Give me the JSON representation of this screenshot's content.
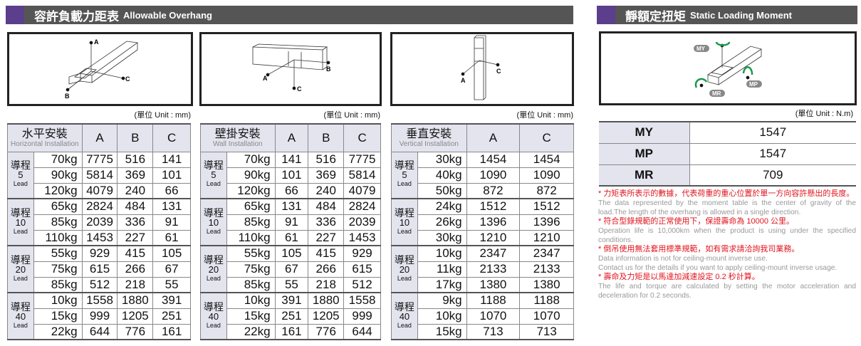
{
  "left_header": {
    "zh": "容許負載力距表",
    "en": "Allowable Overhang"
  },
  "right_header": {
    "zh": "靜額定扭矩",
    "en": "Static Loading Moment"
  },
  "unit_mm": "(單位 Unit : mm)",
  "unit_nm": "(單位 Unit : N.m)",
  "diagram_labels": {
    "a": "A",
    "b": "B",
    "c": "C",
    "my": "MY",
    "mp": "MP",
    "mr": "MR"
  },
  "colors": {
    "header_bar": "#555555",
    "accent": "#5b3f8c",
    "table_header_bg": "#e4e4ef",
    "note_red": "#e0141e",
    "moment_arrow": "#1a9a4a"
  },
  "lead_label_zh": "導程",
  "lead_label_en": "Lead",
  "tables": [
    {
      "title_zh": "水平安裝",
      "title_en": "Horizontal Installation",
      "cols": [
        "A",
        "B",
        "C"
      ],
      "groups": [
        {
          "lead": "5",
          "rows": [
            [
              "70kg",
              "7775",
              "516",
              "141"
            ],
            [
              "90kg",
              "5814",
              "369",
              "101"
            ],
            [
              "120kg",
              "4079",
              "240",
              "66"
            ]
          ]
        },
        {
          "lead": "10",
          "rows": [
            [
              "65kg",
              "2824",
              "484",
              "131"
            ],
            [
              "85kg",
              "2039",
              "336",
              "91"
            ],
            [
              "110kg",
              "1453",
              "227",
              "61"
            ]
          ]
        },
        {
          "lead": "20",
          "rows": [
            [
              "55kg",
              "929",
              "415",
              "105"
            ],
            [
              "75kg",
              "615",
              "266",
              "67"
            ],
            [
              "85kg",
              "512",
              "218",
              "55"
            ]
          ]
        },
        {
          "lead": "40",
          "rows": [
            [
              "10kg",
              "1558",
              "1880",
              "391"
            ],
            [
              "15kg",
              "999",
              "1205",
              "251"
            ],
            [
              "22kg",
              "644",
              "776",
              "161"
            ]
          ]
        }
      ]
    },
    {
      "title_zh": "壁掛安裝",
      "title_en": "Wall Installation",
      "cols": [
        "A",
        "B",
        "C"
      ],
      "groups": [
        {
          "lead": "5",
          "rows": [
            [
              "70kg",
              "141",
              "516",
              "7775"
            ],
            [
              "90kg",
              "101",
              "369",
              "5814"
            ],
            [
              "120kg",
              "66",
              "240",
              "4079"
            ]
          ]
        },
        {
          "lead": "10",
          "rows": [
            [
              "65kg",
              "131",
              "484",
              "2824"
            ],
            [
              "85kg",
              "91",
              "336",
              "2039"
            ],
            [
              "110kg",
              "61",
              "227",
              "1453"
            ]
          ]
        },
        {
          "lead": "20",
          "rows": [
            [
              "55kg",
              "105",
              "415",
              "929"
            ],
            [
              "75kg",
              "67",
              "266",
              "615"
            ],
            [
              "85kg",
              "55",
              "218",
              "512"
            ]
          ]
        },
        {
          "lead": "40",
          "rows": [
            [
              "10kg",
              "391",
              "1880",
              "1558"
            ],
            [
              "15kg",
              "251",
              "1205",
              "999"
            ],
            [
              "22kg",
              "161",
              "776",
              "644"
            ]
          ]
        }
      ]
    },
    {
      "title_zh": "垂直安裝",
      "title_en": "Vertical Installation",
      "cols": [
        "A",
        "C"
      ],
      "groups": [
        {
          "lead": "5",
          "rows": [
            [
              "30kg",
              "1454",
              "1454"
            ],
            [
              "40kg",
              "1090",
              "1090"
            ],
            [
              "50kg",
              "872",
              "872"
            ]
          ]
        },
        {
          "lead": "10",
          "rows": [
            [
              "24kg",
              "1512",
              "1512"
            ],
            [
              "26kg",
              "1396",
              "1396"
            ],
            [
              "30kg",
              "1210",
              "1210"
            ]
          ]
        },
        {
          "lead": "20",
          "rows": [
            [
              "10kg",
              "2347",
              "2347"
            ],
            [
              "11kg",
              "2133",
              "2133"
            ],
            [
              "17kg",
              "1380",
              "1380"
            ]
          ]
        },
        {
          "lead": "40",
          "rows": [
            [
              "9kg",
              "1188",
              "1188"
            ],
            [
              "10kg",
              "1070",
              "1070"
            ],
            [
              "15kg",
              "713",
              "713"
            ]
          ]
        }
      ]
    }
  ],
  "moments": [
    {
      "k": "MY",
      "v": "1547"
    },
    {
      "k": "MP",
      "v": "1547"
    },
    {
      "k": "MR",
      "v": "709"
    }
  ],
  "notes": [
    {
      "zh": "* 力矩表所表示的數據，代表荷重的重心位置於單一方向容許懸出的長度。",
      "en": [
        "The data represented by the moment table is the center of gravity of the load.The length of the overhang is allowed in a single direction."
      ]
    },
    {
      "zh": "* 符合型錄規範的正常使用下，保證壽命為 10000 公里。",
      "en": [
        "Operation life is 10,000km when the product is using under the specified conditions."
      ]
    },
    {
      "zh": "* 倒吊使用無法套用標準規範，如有需求請洽詢我司業務。",
      "en": [
        "Data information is not for ceiling-mount inverse use.",
        "Contact us for the details if you want to apply ceiling-mount inverse usage."
      ]
    },
    {
      "zh": "* 壽命及力矩是以馬達加減速設定 0.2 秒計算。",
      "en": [
        "The life and torque are calculated by setting the motor acceleration and deceleration for 0.2 seconds."
      ]
    }
  ]
}
